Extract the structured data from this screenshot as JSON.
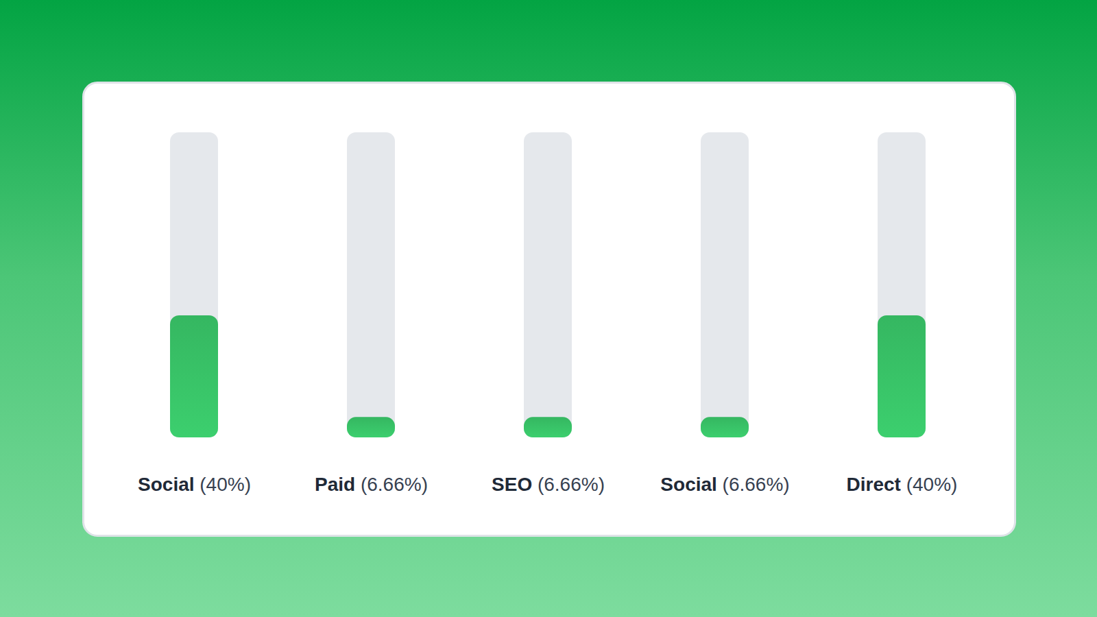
{
  "chart_data": {
    "type": "bar",
    "categories": [
      "Social",
      "Paid",
      "SEO",
      "Social",
      "Direct"
    ],
    "values": [
      40,
      6.66,
      6.66,
      6.66,
      40
    ],
    "value_labels": [
      "(40%)",
      "(6.66%)",
      "(6.66%)",
      "(6.66%)",
      "(40%)"
    ],
    "data_labels": true,
    "color": "#3ccf6e",
    "ylim": [
      0,
      100
    ],
    "tick_labels": "x",
    "grid": false
  }
}
